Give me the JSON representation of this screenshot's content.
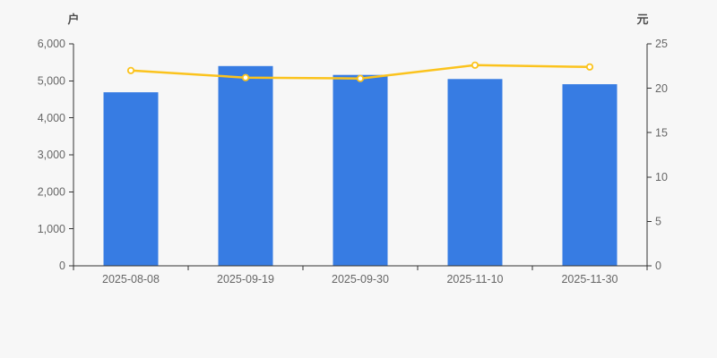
{
  "chart_data": {
    "type": "bar+line",
    "categories": [
      "2025-08-08",
      "2025-09-19",
      "2025-09-30",
      "2025-11-10",
      "2025-11-30"
    ],
    "series": [
      {
        "name": "户",
        "type": "bar",
        "axis": "left",
        "values": [
          4690,
          5400,
          5160,
          5050,
          4910
        ],
        "color": "#377CE3"
      },
      {
        "name": "元",
        "type": "line",
        "axis": "right",
        "values": [
          22.0,
          21.2,
          21.1,
          22.6,
          22.4
        ],
        "color": "#FBC31D",
        "marker": "circle-white-fill"
      }
    ],
    "left_axis": {
      "name": "户",
      "min": 0,
      "max": 6000,
      "tick_step": 1000,
      "tick_labels": [
        "0",
        "1,000",
        "2,000",
        "3,000",
        "4,000",
        "5,000",
        "6,000"
      ]
    },
    "right_axis": {
      "name": "元",
      "min": 0,
      "max": 25,
      "tick_step": 5,
      "tick_labels": [
        "0",
        "5",
        "10",
        "15",
        "20",
        "25"
      ]
    },
    "grid": false,
    "legend": null,
    "title": ""
  },
  "colors": {
    "background": "#f7f7f7",
    "axis_line": "#333333",
    "tick_label": "#666666",
    "axis_unit": "#4d4d4d",
    "bar": "#377CE3",
    "line": "#FBC31D",
    "marker_fill": "#ffffff"
  }
}
